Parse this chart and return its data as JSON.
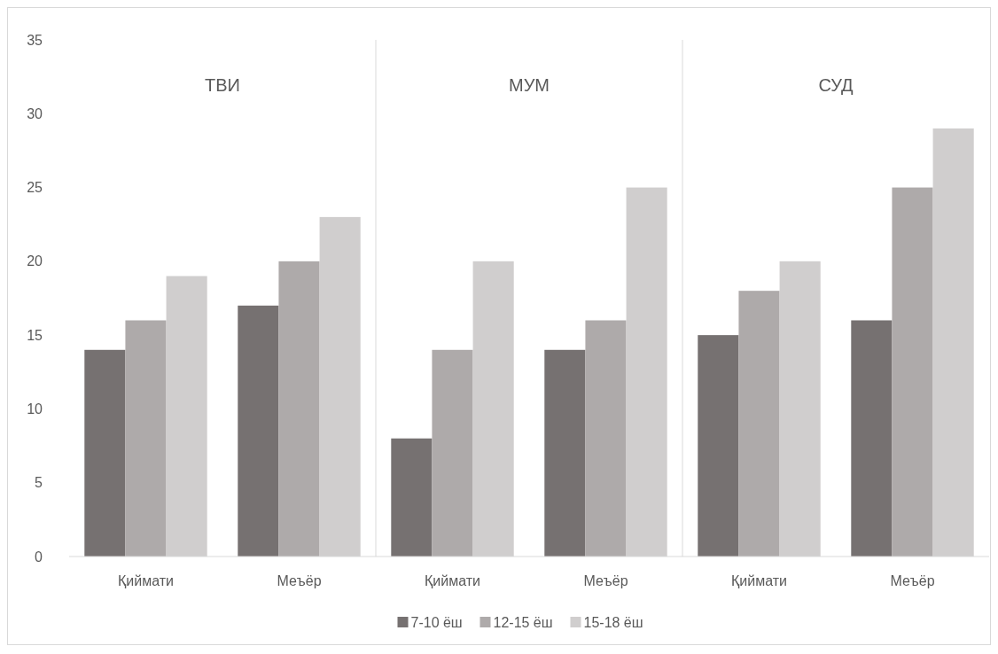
{
  "chart_data": [
    {
      "type": "bar",
      "title": "ТВИ",
      "categories": [
        "Қиймати",
        "Меъёр"
      ],
      "ylim": [
        0,
        35
      ],
      "yticks": [
        0,
        5,
        10,
        15,
        20,
        25,
        30,
        35
      ],
      "legend": "bottom",
      "series": [
        {
          "name": "7-10 ёш",
          "color": "#767171",
          "values": [
            14,
            17
          ]
        },
        {
          "name": "12-15 ёш",
          "color": "#aeaaaa",
          "values": [
            16,
            20
          ]
        },
        {
          "name": "15-18 ёш",
          "color": "#d0cece",
          "values": [
            19,
            23
          ]
        }
      ]
    },
    {
      "type": "bar",
      "title": "МУМ",
      "categories": [
        "Қиймати",
        "Меъёр"
      ],
      "ylim": [
        0,
        35
      ],
      "tick_labels": "x",
      "series": [
        {
          "color": "#767171",
          "values": [
            8,
            14
          ]
        },
        {
          "color": "#aeaaaa",
          "values": [
            14,
            16
          ]
        },
        {
          "color": "#d0cece",
          "values": [
            20,
            25
          ]
        }
      ]
    },
    {
      "type": "bar",
      "title": "СУД",
      "categories": [
        "Қиймати",
        "Меъёр"
      ],
      "ylim": [
        0,
        35
      ],
      "tick_labels": "x",
      "series": [
        {
          "color": "#767171",
          "values": [
            15,
            16
          ]
        },
        {
          "color": "#aeaaaa",
          "values": [
            18,
            25
          ]
        },
        {
          "color": "#d0cece",
          "values": [
            20,
            29
          ]
        }
      ]
    }
  ]
}
